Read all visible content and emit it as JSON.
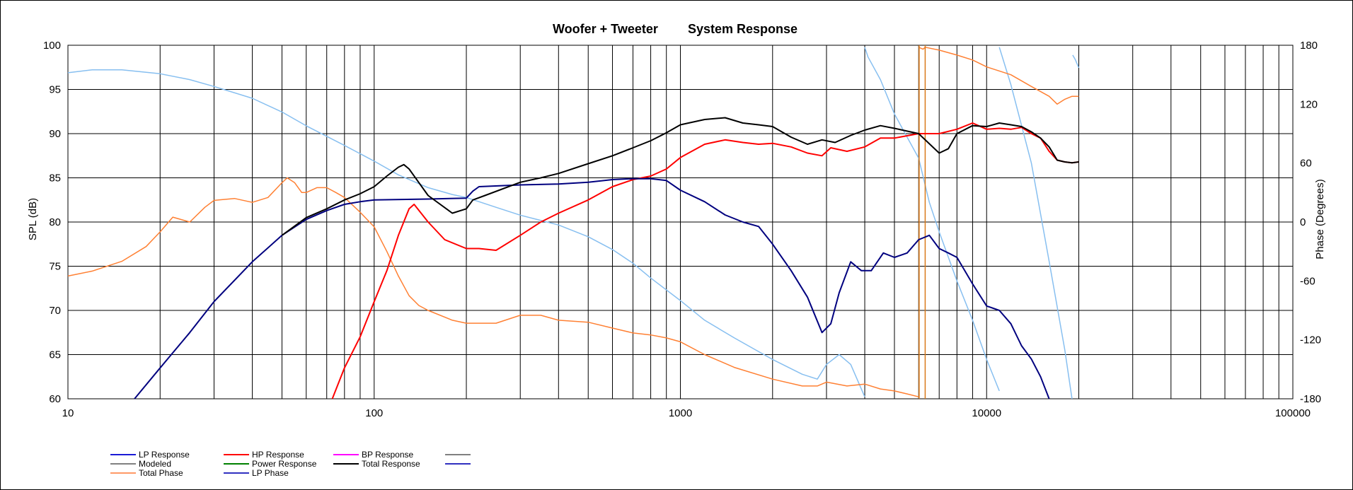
{
  "chart_data": {
    "type": "line",
    "title_left": "Woofer + Tweeter",
    "title_right": "System Response",
    "ylabel": "SPL (dB)",
    "y2label": "Phase (Degrees)",
    "xscale": "log",
    "xlim": [
      10,
      100000
    ],
    "ylim": [
      60,
      100
    ],
    "y2lim": [
      -180,
      180
    ],
    "grid": true,
    "x_ticks": [
      "10",
      "100",
      "1000",
      "10000",
      "100000"
    ],
    "y_ticks": [
      "60",
      "65",
      "70",
      "75",
      "80",
      "85",
      "90",
      "95",
      "100"
    ],
    "y2_ticks": [
      "-180",
      "-120",
      "-60",
      "0",
      "60",
      "120",
      "180"
    ],
    "legend": {
      "placement": "bottom-left",
      "entries": [
        {
          "label": "LP Response",
          "color": "#1a1ad6"
        },
        {
          "label": "HP Response",
          "color": "#ff0000"
        },
        {
          "label": "BP Response",
          "color": "#ff00ff"
        },
        {
          "label": "",
          "color": "#808080"
        },
        {
          "label": "Modeled",
          "color": "#808080"
        },
        {
          "label": "Power Response",
          "color": "#008000"
        },
        {
          "label": "Total Response",
          "color": "#000000"
        },
        {
          "label": "",
          "color": "#3030c0"
        },
        {
          "label": "Total Phase",
          "color": "#ff9966"
        },
        {
          "label": "LP Phase",
          "color": "#3030c0"
        }
      ]
    },
    "series": [
      {
        "name": "LP Response",
        "axis": "left",
        "color": "#00007f",
        "x": [
          16.5,
          20,
          25,
          30,
          40,
          50,
          60,
          70,
          80,
          90,
          100,
          150,
          200,
          210,
          220,
          300,
          400,
          500,
          600,
          700,
          800,
          900,
          1000,
          1200,
          1400,
          1600,
          1800,
          2000,
          2300,
          2600,
          2900,
          3100,
          3300,
          3600,
          3900,
          4200,
          4600,
          5000,
          5500,
          6000,
          6500,
          7000,
          7500,
          8000,
          9000,
          10000,
          11000,
          12000,
          13000,
          14000,
          15000,
          16000
        ],
        "y": [
          60,
          63.5,
          67.5,
          71,
          75.5,
          78.5,
          80.3,
          81.3,
          82,
          82.3,
          82.5,
          82.6,
          82.7,
          83.5,
          84,
          84.2,
          84.3,
          84.5,
          84.8,
          84.9,
          84.9,
          84.7,
          83.6,
          82.3,
          80.8,
          80,
          79.5,
          77.5,
          74.5,
          71.5,
          67.5,
          68.5,
          72,
          75.5,
          74.5,
          74.5,
          76.5,
          76,
          76.5,
          78,
          78.5,
          77,
          76.5,
          76,
          73,
          70.5,
          70,
          68.5,
          66,
          64.5,
          62.5,
          60
        ]
      },
      {
        "name": "HP Response",
        "axis": "left",
        "color": "#ff0000",
        "x": [
          73,
          80,
          90,
          100,
          110,
          120,
          130,
          135,
          150,
          170,
          200,
          220,
          250,
          300,
          350,
          400,
          500,
          600,
          700,
          800,
          900,
          1000,
          1200,
          1400,
          1600,
          1800,
          2000,
          2300,
          2600,
          2900,
          3100,
          3500,
          4000,
          4500,
          5000,
          6000,
          7000,
          8000,
          9000,
          10000,
          11000,
          12000,
          13000,
          14000,
          15000,
          16000,
          17000,
          18000,
          19000,
          20000
        ],
        "y": [
          60,
          63.5,
          67,
          71,
          74.5,
          78.5,
          81.5,
          82,
          80,
          78,
          77,
          77,
          76.8,
          78.5,
          80,
          81,
          82.5,
          84,
          84.8,
          85.2,
          86,
          87.3,
          88.8,
          89.3,
          89,
          88.8,
          88.9,
          88.5,
          87.8,
          87.5,
          88.4,
          88,
          88.5,
          89.5,
          89.5,
          90,
          90,
          90.5,
          91.2,
          90.5,
          90.6,
          90.5,
          90.7,
          90,
          89.5,
          88,
          87,
          86.8,
          86.7,
          86.8
        ]
      },
      {
        "name": "Total Response",
        "axis": "left",
        "color": "#000000",
        "x": [
          50,
          60,
          70,
          80,
          90,
          100,
          110,
          120,
          125,
          130,
          150,
          180,
          200,
          210,
          230,
          300,
          350,
          400,
          500,
          600,
          700,
          800,
          900,
          1000,
          1200,
          1400,
          1600,
          1800,
          2000,
          2300,
          2600,
          2900,
          3200,
          3600,
          4000,
          4500,
          5000,
          6000,
          7000,
          7500,
          8000,
          9000,
          10000,
          11000,
          12000,
          13000,
          14000,
          15000,
          16000,
          17000,
          18000,
          19000,
          20000
        ],
        "y": [
          78.5,
          80.5,
          81.5,
          82.5,
          83.2,
          84,
          85.2,
          86.2,
          86.5,
          86,
          83,
          81,
          81.5,
          82.5,
          83,
          84.5,
          85,
          85.5,
          86.6,
          87.5,
          88.4,
          89.2,
          90.1,
          91,
          91.6,
          91.8,
          91.2,
          91,
          90.8,
          89.6,
          88.8,
          89.3,
          89,
          89.8,
          90.4,
          90.9,
          90.6,
          90,
          87.8,
          88.3,
          90,
          90.9,
          90.8,
          91.2,
          91,
          90.8,
          90.2,
          89.5,
          88.5,
          87,
          86.8,
          86.7,
          86.8
        ]
      },
      {
        "name": "LP Phase",
        "axis": "right",
        "color": "#87bff0",
        "x": [
          10,
          12,
          15,
          20,
          25,
          30,
          40,
          50,
          60,
          80,
          100,
          120,
          150,
          180,
          200,
          250,
          300,
          400,
          500,
          600,
          700,
          800,
          1000,
          1200,
          1500,
          2000,
          2500,
          2800,
          3000,
          3300,
          3600,
          4000,
          4000,
          4100,
          4500,
          5000,
          6000,
          6500,
          7000,
          8000,
          9000,
          10000,
          11000,
          11001,
          12000,
          14000,
          16000,
          18000,
          19000,
          19100,
          19500,
          20000
        ],
        "y": [
          152,
          155,
          155,
          151,
          145,
          138,
          126,
          112,
          98,
          78,
          62,
          48,
          35,
          28,
          25,
          15,
          7,
          -3,
          -15,
          -28,
          -42,
          -57,
          -80,
          -100,
          -118,
          -140,
          -155,
          -160,
          -145,
          -135,
          -145,
          -178,
          178,
          168,
          145,
          110,
          65,
          20,
          -10,
          -60,
          -100,
          -140,
          -172,
          178,
          140,
          60,
          -40,
          -130,
          -180,
          170,
          165,
          157
        ]
      },
      {
        "name": "Total Phase",
        "axis": "right",
        "color": "#ff8033",
        "x": [
          10,
          12,
          15,
          18,
          20,
          22,
          25,
          28,
          30,
          35,
          40,
          45,
          50,
          52,
          55,
          58,
          60,
          65,
          70,
          75,
          80,
          90,
          100,
          110,
          120,
          130,
          140,
          150,
          180,
          200,
          250,
          300,
          350,
          400,
          500,
          600,
          700,
          800,
          900,
          1000,
          1200,
          1500,
          2000,
          2500,
          2800,
          3000,
          3500,
          4000,
          4500,
          5000,
          5500,
          6000,
          6000,
          6200,
          6300,
          7000,
          8000,
          9000,
          10000,
          12000,
          14000,
          16000,
          17000,
          18000,
          19000,
          20000
        ],
        "y": [
          -55,
          -50,
          -40,
          -25,
          -10,
          5,
          0,
          15,
          22,
          24,
          20,
          25,
          40,
          45,
          40,
          30,
          30,
          35,
          35,
          30,
          25,
          10,
          -5,
          -30,
          -55,
          -75,
          -85,
          -90,
          -100,
          -103,
          -103,
          -95,
          -95,
          -100,
          -102,
          -108,
          -113,
          -115,
          -118,
          -122,
          -135,
          -148,
          -160,
          -167,
          -167,
          -163,
          -167,
          -165,
          -170,
          -172,
          -175,
          -178,
          178,
          176,
          178,
          175,
          170,
          165,
          158,
          150,
          138,
          128,
          120,
          125,
          128,
          128
        ]
      },
      {
        "name": "Total Phase markers",
        "axis": "right",
        "color": "#d97a1a",
        "vlines": [
          6020,
          6300
        ]
      }
    ]
  }
}
